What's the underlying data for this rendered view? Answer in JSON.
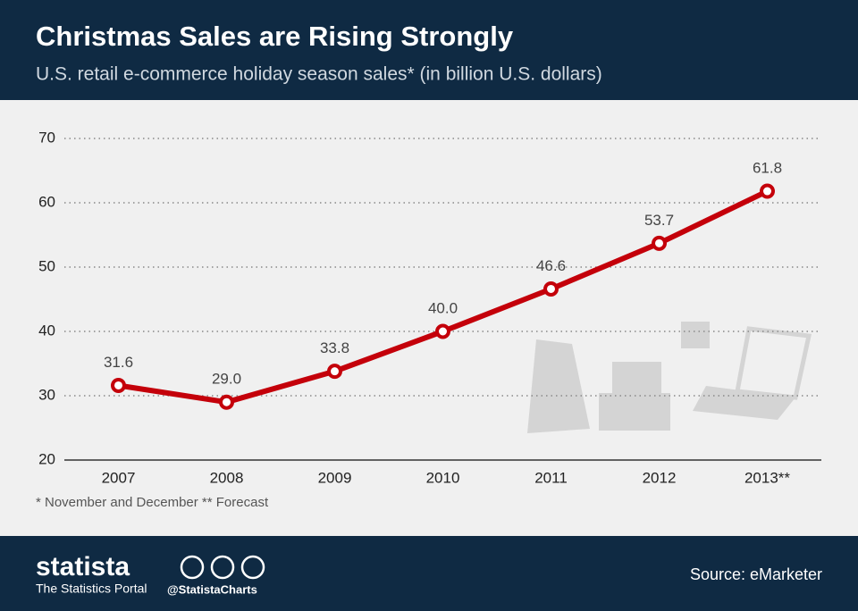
{
  "chart_data": {
    "type": "line",
    "title": "Christmas Sales are Rising Strongly",
    "subtitle": "U.S. retail e-commerce holiday season sales* (in billion U.S. dollars)",
    "categories": [
      "2007",
      "2008",
      "2009",
      "2010",
      "2011",
      "2012",
      "2013**"
    ],
    "values": [
      31.6,
      29.0,
      33.8,
      40.0,
      46.6,
      53.7,
      61.8
    ],
    "value_labels": [
      "31.6",
      "29.0",
      "33.8",
      "40.0",
      "46.6",
      "53.7",
      "61.8"
    ],
    "color": "#c4000a",
    "ylim": [
      20,
      70
    ],
    "yticks": [
      20,
      30,
      40,
      50,
      60,
      70
    ],
    "grid": true,
    "footnote": "* November and December ** Forecast"
  },
  "footer": {
    "brand": "statista",
    "tagline": "The Statistics Portal",
    "handle": "@StatistaCharts",
    "source": "Source: eMarketer"
  }
}
